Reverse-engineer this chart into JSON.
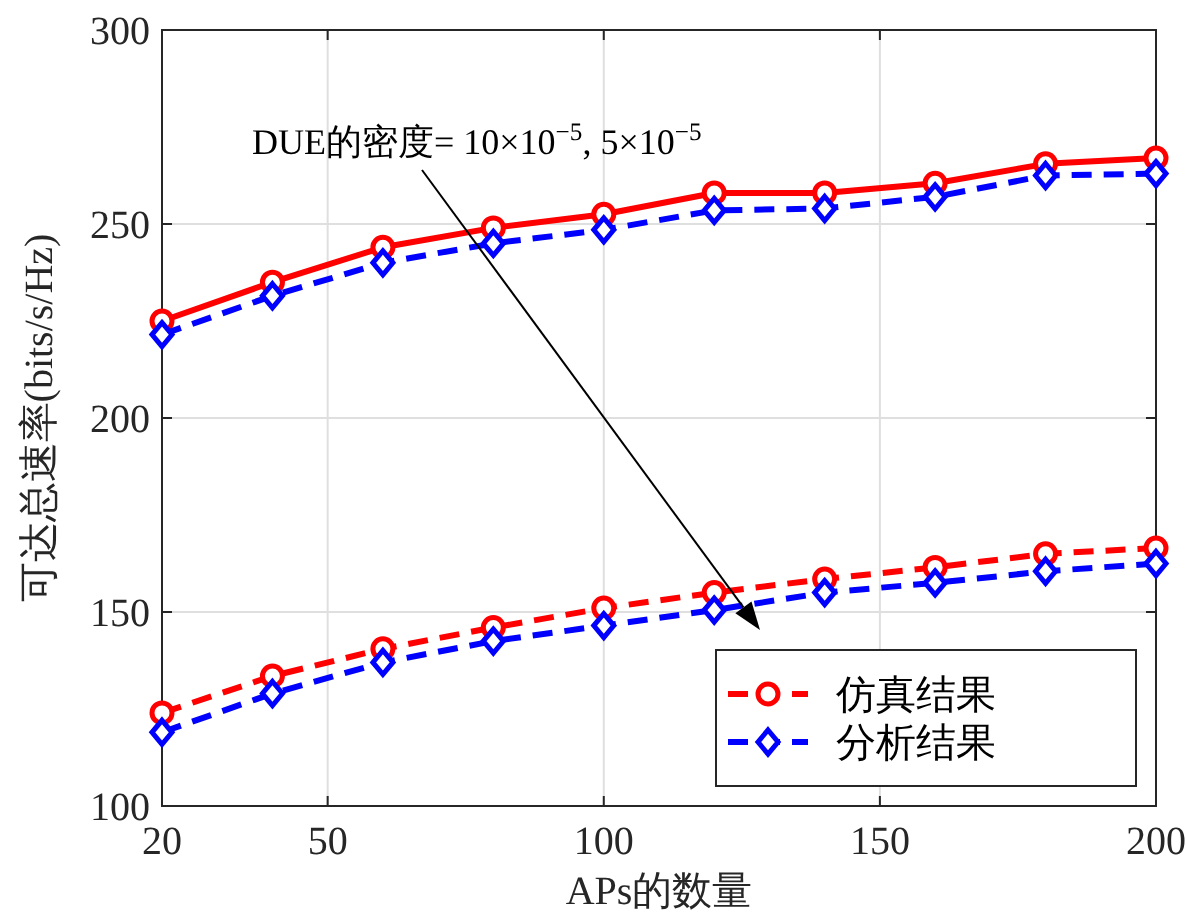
{
  "chart_data": {
    "type": "line",
    "xlabel": "APs的数量",
    "ylabel": "可达总速率(bits/s/Hz)",
    "x": [
      20,
      40,
      60,
      80,
      100,
      120,
      140,
      160,
      180,
      200
    ],
    "xlim": [
      20,
      200
    ],
    "xticks": [
      20,
      50,
      100,
      150,
      200
    ],
    "ylim": [
      100,
      300
    ],
    "yticks": [
      100,
      150,
      200,
      250,
      300
    ],
    "grid": true,
    "legend": "bottom right",
    "annotations": [
      "DUE的密度= 10×10$^{−5}$, 5×10$^{−5}$"
    ],
    "series": [
      {
        "color": "#ff0000",
        "marker": "circle",
        "line_style": "solid",
        "values": [
          225,
          235,
          244,
          249,
          252.5,
          258,
          258,
          260.5,
          265.5,
          267
        ]
      },
      {
        "color": "#0000ff",
        "marker": "diamond",
        "line_style": "dashed",
        "values": [
          221.5,
          231.5,
          240,
          245,
          248.5,
          253.5,
          254,
          257,
          262.5,
          263
        ]
      },
      {
        "name": "仿真结果",
        "color": "#ff0000",
        "marker": "circle",
        "line_style": "dashed",
        "values": [
          124,
          133.5,
          140.5,
          146,
          151,
          155,
          158.5,
          161.5,
          165,
          166.5
        ]
      },
      {
        "name": "分析结果",
        "color": "#0000ff",
        "marker": "diamond",
        "line_style": "dashed",
        "values": [
          119,
          129,
          137,
          142.5,
          146.5,
          150.5,
          155,
          157.5,
          160.5,
          162.5
        ]
      }
    ]
  }
}
